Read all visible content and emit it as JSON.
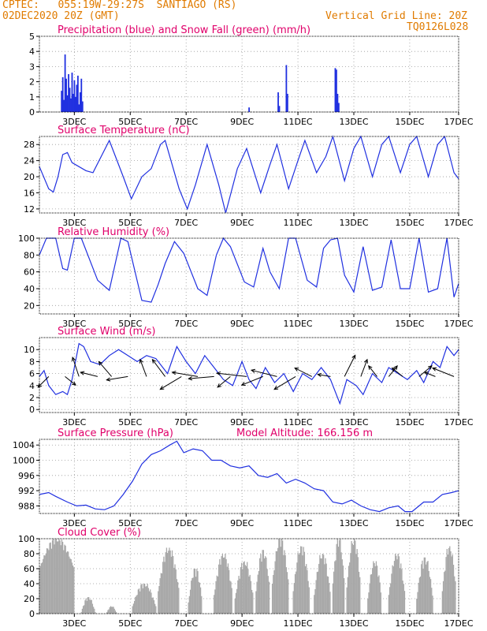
{
  "header": {
    "line1": "CPTEC:   055:19W-29:27S  SANTIAGO (RS)",
    "line2": "02DEC2020 20Z (GMT)",
    "grid_note": "Vertical Grid Line: 20Z",
    "code": "TQ0126L028"
  },
  "colors": {
    "series": "#2030e0",
    "title": "#e0006a",
    "header": "#e07b00",
    "cloud": "#a8a8a8",
    "snow": "#00aa00",
    "wind_arrow": "#000000"
  },
  "chart_data": [
    {
      "id": "precip",
      "type": "bar",
      "title": "Precipitation (blue) and Snow Fall (green) (mm/h)",
      "x_ticks": [
        "3DEC",
        "5DEC",
        "7DEC",
        "9DEC",
        "11DEC",
        "13DEC",
        "15DEC",
        "17DEC"
      ],
      "x_range_hours": [
        0,
        360
      ],
      "ylim": [
        0,
        5
      ],
      "y_ticks": [
        "0",
        "1",
        "2",
        "3",
        "4",
        "5"
      ],
      "bars": [
        {
          "t": 19,
          "v": 1.4
        },
        {
          "t": 20,
          "v": 2.3
        },
        {
          "t": 21,
          "v": 0.8
        },
        {
          "t": 22,
          "v": 3.8
        },
        {
          "t": 23,
          "v": 2.2
        },
        {
          "t": 24,
          "v": 1.1
        },
        {
          "t": 25,
          "v": 2.5
        },
        {
          "t": 26,
          "v": 1.6
        },
        {
          "t": 27,
          "v": 0.9
        },
        {
          "t": 28,
          "v": 2.6
        },
        {
          "t": 29,
          "v": 1.2
        },
        {
          "t": 30,
          "v": 2.1
        },
        {
          "t": 31,
          "v": 1.0
        },
        {
          "t": 32,
          "v": 1.8
        },
        {
          "t": 33,
          "v": 2.4
        },
        {
          "t": 34,
          "v": 0.5
        },
        {
          "t": 35,
          "v": 1.3
        },
        {
          "t": 36,
          "v": 2.2
        },
        {
          "t": 37,
          "v": 0.7
        },
        {
          "t": 180,
          "v": 0.3
        },
        {
          "t": 205,
          "v": 1.3
        },
        {
          "t": 206,
          "v": 0.4
        },
        {
          "t": 212,
          "v": 3.1
        },
        {
          "t": 213,
          "v": 1.2
        },
        {
          "t": 254,
          "v": 2.9
        },
        {
          "t": 255,
          "v": 2.8
        },
        {
          "t": 256,
          "v": 1.2
        },
        {
          "t": 257,
          "v": 0.6
        }
      ]
    },
    {
      "id": "temp",
      "type": "line",
      "title": "Surface Temperature (nC)",
      "x_ticks": [
        "3DEC",
        "5DEC",
        "7DEC",
        "9DEC",
        "11DEC",
        "13DEC",
        "15DEC",
        "17DEC"
      ],
      "ylim": [
        11,
        30
      ],
      "y_ticks": [
        "12",
        "16",
        "20",
        "24",
        "28"
      ],
      "points": [
        [
          0,
          22.5
        ],
        [
          8,
          17
        ],
        [
          12,
          16.2
        ],
        [
          16,
          20
        ],
        [
          20,
          25.5
        ],
        [
          24,
          26
        ],
        [
          28,
          23.5
        ],
        [
          40,
          21.5
        ],
        [
          46,
          21
        ],
        [
          60,
          29
        ],
        [
          64,
          26
        ],
        [
          72,
          20
        ],
        [
          79,
          14.5
        ],
        [
          88,
          20
        ],
        [
          96,
          22
        ],
        [
          104,
          28
        ],
        [
          108,
          29
        ],
        [
          120,
          17
        ],
        [
          127,
          12
        ],
        [
          134,
          18
        ],
        [
          140,
          24
        ],
        [
          144,
          28
        ],
        [
          154,
          18
        ],
        [
          160,
          11
        ],
        [
          170,
          22
        ],
        [
          178,
          27
        ],
        [
          190,
          16
        ],
        [
          198,
          23
        ],
        [
          204,
          28
        ],
        [
          214,
          17
        ],
        [
          222,
          24
        ],
        [
          228,
          29
        ],
        [
          238,
          21
        ],
        [
          246,
          25
        ],
        [
          252,
          30
        ],
        [
          262,
          19
        ],
        [
          270,
          27
        ],
        [
          276,
          30
        ],
        [
          286,
          20
        ],
        [
          294,
          28
        ],
        [
          300,
          30
        ],
        [
          310,
          21
        ],
        [
          318,
          28
        ],
        [
          324,
          30
        ],
        [
          334,
          20
        ],
        [
          342,
          28
        ],
        [
          348,
          30
        ],
        [
          356,
          21
        ],
        [
          360,
          19.5
        ]
      ]
    },
    {
      "id": "rh",
      "type": "line",
      "title": "Relative Humidity (%)",
      "x_ticks": [
        "3DEC",
        "5DEC",
        "7DEC",
        "9DEC",
        "11DEC",
        "13DEC",
        "15DEC",
        "17DEC"
      ],
      "ylim": [
        10,
        100
      ],
      "y_ticks": [
        "20",
        "40",
        "60",
        "80",
        "100"
      ],
      "points": [
        [
          0,
          80
        ],
        [
          6,
          100
        ],
        [
          14,
          100
        ],
        [
          20,
          64
        ],
        [
          24,
          62
        ],
        [
          30,
          100
        ],
        [
          36,
          100
        ],
        [
          50,
          50
        ],
        [
          60,
          38
        ],
        [
          70,
          100
        ],
        [
          76,
          96
        ],
        [
          88,
          26
        ],
        [
          96,
          24
        ],
        [
          102,
          45
        ],
        [
          108,
          70
        ],
        [
          116,
          96
        ],
        [
          124,
          82
        ],
        [
          136,
          40
        ],
        [
          144,
          32
        ],
        [
          152,
          80
        ],
        [
          158,
          100
        ],
        [
          164,
          90
        ],
        [
          176,
          48
        ],
        [
          184,
          42
        ],
        [
          192,
          88
        ],
        [
          198,
          60
        ],
        [
          206,
          40
        ],
        [
          214,
          100
        ],
        [
          220,
          100
        ],
        [
          230,
          50
        ],
        [
          238,
          42
        ],
        [
          244,
          88
        ],
        [
          250,
          98
        ],
        [
          256,
          100
        ],
        [
          262,
          56
        ],
        [
          270,
          36
        ],
        [
          278,
          90
        ],
        [
          286,
          38
        ],
        [
          294,
          42
        ],
        [
          302,
          98
        ],
        [
          310,
          40
        ],
        [
          318,
          40
        ],
        [
          326,
          100
        ],
        [
          334,
          36
        ],
        [
          342,
          40
        ],
        [
          350,
          100
        ],
        [
          356,
          30
        ],
        [
          360,
          46
        ]
      ]
    },
    {
      "id": "wind",
      "type": "line",
      "title": "Surface Wind (m/s)",
      "x_ticks": [
        "3DEC",
        "5DEC",
        "7DEC",
        "9DEC",
        "11DEC",
        "13DEC",
        "15DEC",
        "17DEC"
      ],
      "ylim": [
        -0.5,
        12
      ],
      "y_ticks": [
        "0",
        "2",
        "4",
        "6",
        "8",
        "10"
      ],
      "points": [
        [
          0,
          5.5
        ],
        [
          4,
          6.5
        ],
        [
          8,
          4
        ],
        [
          14,
          2.5
        ],
        [
          20,
          3
        ],
        [
          24,
          2.5
        ],
        [
          28,
          5
        ],
        [
          34,
          11
        ],
        [
          38,
          10.5
        ],
        [
          44,
          8
        ],
        [
          52,
          7.5
        ],
        [
          60,
          9
        ],
        [
          68,
          10
        ],
        [
          76,
          9
        ],
        [
          84,
          8
        ],
        [
          92,
          9
        ],
        [
          100,
          8.5
        ],
        [
          110,
          6
        ],
        [
          118,
          10.5
        ],
        [
          126,
          8
        ],
        [
          134,
          6
        ],
        [
          142,
          9
        ],
        [
          150,
          7
        ],
        [
          158,
          5
        ],
        [
          166,
          4
        ],
        [
          174,
          8
        ],
        [
          180,
          5
        ],
        [
          186,
          3.5
        ],
        [
          194,
          7
        ],
        [
          202,
          4.5
        ],
        [
          210,
          6
        ],
        [
          218,
          3
        ],
        [
          226,
          6
        ],
        [
          234,
          5
        ],
        [
          242,
          7
        ],
        [
          250,
          5
        ],
        [
          258,
          1
        ],
        [
          264,
          5
        ],
        [
          272,
          4
        ],
        [
          278,
          2.5
        ],
        [
          286,
          6
        ],
        [
          294,
          4.5
        ],
        [
          300,
          7
        ],
        [
          308,
          6
        ],
        [
          316,
          5
        ],
        [
          324,
          6.5
        ],
        [
          330,
          4.5
        ],
        [
          338,
          8
        ],
        [
          344,
          7
        ],
        [
          350,
          10.5
        ],
        [
          356,
          9
        ],
        [
          360,
          10
        ]
      ],
      "arrows": [
        {
          "t": 8,
          "u": -2.5,
          "v": -2.5
        },
        {
          "t": 22,
          "u": 2.5,
          "v": -2
        },
        {
          "t": 34,
          "u": -1.5,
          "v": 4.5
        },
        {
          "t": 50,
          "u": -4,
          "v": 1
        },
        {
          "t": 62,
          "u": -3,
          "v": 3.5
        },
        {
          "t": 76,
          "u": -5,
          "v": -0.8
        },
        {
          "t": 92,
          "u": -1.5,
          "v": 4
        },
        {
          "t": 108,
          "u": -3,
          "v": 4
        },
        {
          "t": 122,
          "u": -5,
          "v": -3
        },
        {
          "t": 136,
          "u": -6,
          "v": 1
        },
        {
          "t": 150,
          "u": -6,
          "v": -0.5
        },
        {
          "t": 164,
          "u": -3,
          "v": -2.5
        },
        {
          "t": 178,
          "u": -7,
          "v": 0.8
        },
        {
          "t": 192,
          "u": -5,
          "v": -2
        },
        {
          "t": 204,
          "u": -6,
          "v": 1.5
        },
        {
          "t": 220,
          "u": -5,
          "v": -3
        },
        {
          "t": 234,
          "u": -4,
          "v": 2
        },
        {
          "t": 250,
          "u": -3,
          "v": 0.5
        },
        {
          "t": 262,
          "u": 2.5,
          "v": 5
        },
        {
          "t": 276,
          "u": 1.5,
          "v": 4
        },
        {
          "t": 290,
          "u": -2,
          "v": 2.5
        },
        {
          "t": 300,
          "u": 2,
          "v": 2.5
        },
        {
          "t": 312,
          "u": -2.5,
          "v": 2
        },
        {
          "t": 326,
          "u": 3,
          "v": 2.5
        },
        {
          "t": 340,
          "u": -2.5,
          "v": 1
        },
        {
          "t": 356,
          "u": -5,
          "v": 2
        }
      ]
    },
    {
      "id": "pressure",
      "type": "line",
      "title": "Surface Pressure (hPa)",
      "subtitle": "Model Altitude: 166.156 m",
      "x_ticks": [
        "3DEC",
        "5DEC",
        "7DEC",
        "9DEC",
        "11DEC",
        "13DEC",
        "15DEC",
        "17DEC"
      ],
      "ylim": [
        986,
        1005.5
      ],
      "y_ticks": [
        "988",
        "992",
        "996",
        "1000",
        "1004"
      ],
      "points": [
        [
          0,
          991
        ],
        [
          8,
          991.5
        ],
        [
          14,
          990.5
        ],
        [
          24,
          989
        ],
        [
          32,
          988
        ],
        [
          40,
          988.2
        ],
        [
          48,
          987.2
        ],
        [
          56,
          987
        ],
        [
          64,
          988
        ],
        [
          72,
          991
        ],
        [
          80,
          994.5
        ],
        [
          88,
          999
        ],
        [
          96,
          1001.5
        ],
        [
          104,
          1002.5
        ],
        [
          112,
          1004
        ],
        [
          118,
          1005
        ],
        [
          124,
          1002
        ],
        [
          132,
          1003
        ],
        [
          140,
          1002.5
        ],
        [
          148,
          1000
        ],
        [
          156,
          1000
        ],
        [
          164,
          998.5
        ],
        [
          172,
          998
        ],
        [
          180,
          998.5
        ],
        [
          188,
          996
        ],
        [
          196,
          995.5
        ],
        [
          204,
          996.5
        ],
        [
          212,
          994
        ],
        [
          220,
          995
        ],
        [
          228,
          994
        ],
        [
          236,
          992.5
        ],
        [
          244,
          992
        ],
        [
          252,
          989
        ],
        [
          260,
          988.5
        ],
        [
          268,
          989.5
        ],
        [
          276,
          988
        ],
        [
          284,
          987
        ],
        [
          292,
          986.5
        ],
        [
          300,
          987.5
        ],
        [
          308,
          988
        ],
        [
          314,
          986.5
        ],
        [
          320,
          986.5
        ],
        [
          330,
          989
        ],
        [
          338,
          989
        ],
        [
          346,
          991
        ],
        [
          354,
          991.5
        ],
        [
          360,
          992
        ]
      ]
    },
    {
      "id": "cloud",
      "type": "bar",
      "title": "Cloud Cover (%)",
      "x_ticks": [
        "3DEC",
        "5DEC",
        "7DEC",
        "9DEC",
        "11DEC",
        "13DEC",
        "15DEC",
        "17DEC"
      ],
      "ylim": [
        0,
        100
      ],
      "y_ticks": [
        "0",
        "20",
        "40",
        "60",
        "80",
        "100"
      ],
      "segments": [
        {
          "from": 0,
          "to": 30,
          "peak": 100,
          "base": 60
        },
        {
          "from": 36,
          "to": 48,
          "peak": 22,
          "base": 2
        },
        {
          "from": 58,
          "to": 66,
          "peak": 10,
          "base": 2
        },
        {
          "from": 80,
          "to": 100,
          "peak": 40,
          "base": 10
        },
        {
          "from": 102,
          "to": 120,
          "peak": 88,
          "base": 30
        },
        {
          "from": 128,
          "to": 140,
          "peak": 60,
          "base": 15
        },
        {
          "from": 150,
          "to": 166,
          "peak": 80,
          "base": 25
        },
        {
          "from": 168,
          "to": 184,
          "peak": 70,
          "base": 20
        },
        {
          "from": 186,
          "to": 198,
          "peak": 85,
          "base": 30
        },
        {
          "from": 200,
          "to": 214,
          "peak": 100,
          "base": 40
        },
        {
          "from": 218,
          "to": 232,
          "peak": 90,
          "base": 30
        },
        {
          "from": 236,
          "to": 250,
          "peak": 80,
          "base": 25
        },
        {
          "from": 252,
          "to": 262,
          "peak": 100,
          "base": 40
        },
        {
          "from": 264,
          "to": 276,
          "peak": 100,
          "base": 35
        },
        {
          "from": 282,
          "to": 294,
          "peak": 70,
          "base": 20
        },
        {
          "from": 300,
          "to": 314,
          "peak": 80,
          "base": 25
        },
        {
          "from": 324,
          "to": 338,
          "peak": 75,
          "base": 20
        },
        {
          "from": 346,
          "to": 358,
          "peak": 90,
          "base": 30
        }
      ]
    }
  ]
}
